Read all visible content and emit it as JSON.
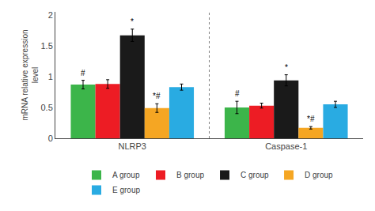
{
  "chart_data": {
    "type": "bar",
    "categories": [
      "NLRP3",
      "Caspase-1"
    ],
    "series": [
      {
        "name": "A group",
        "color": "#3cb54a",
        "values": [
          0.87,
          0.5
        ],
        "errors": [
          0.07,
          0.1
        ],
        "annotations": [
          "#",
          "#"
        ]
      },
      {
        "name": "B group",
        "color": "#ed1c24",
        "values": [
          0.88,
          0.53
        ],
        "errors": [
          0.07,
          0.04
        ]
      },
      {
        "name": "C group",
        "color": "#1a1a1a",
        "values": [
          1.67,
          0.94
        ],
        "errors": [
          0.1,
          0.09
        ],
        "annotations": [
          "*",
          "*"
        ]
      },
      {
        "name": "D group",
        "color": "#f5a623",
        "values": [
          0.49,
          0.17
        ],
        "errors": [
          0.07,
          0.02
        ],
        "annotations": [
          "*#",
          "*#"
        ]
      },
      {
        "name": "E group",
        "color": "#29abe2",
        "values": [
          0.83,
          0.55
        ],
        "errors": [
          0.05,
          0.05
        ]
      }
    ],
    "ylabel": "mRNA relative expression\nlevel",
    "ylim": [
      0,
      2.05
    ],
    "yticks": [
      0,
      0.5,
      1,
      1.5,
      2
    ],
    "grid": false,
    "legend": "bottom"
  }
}
